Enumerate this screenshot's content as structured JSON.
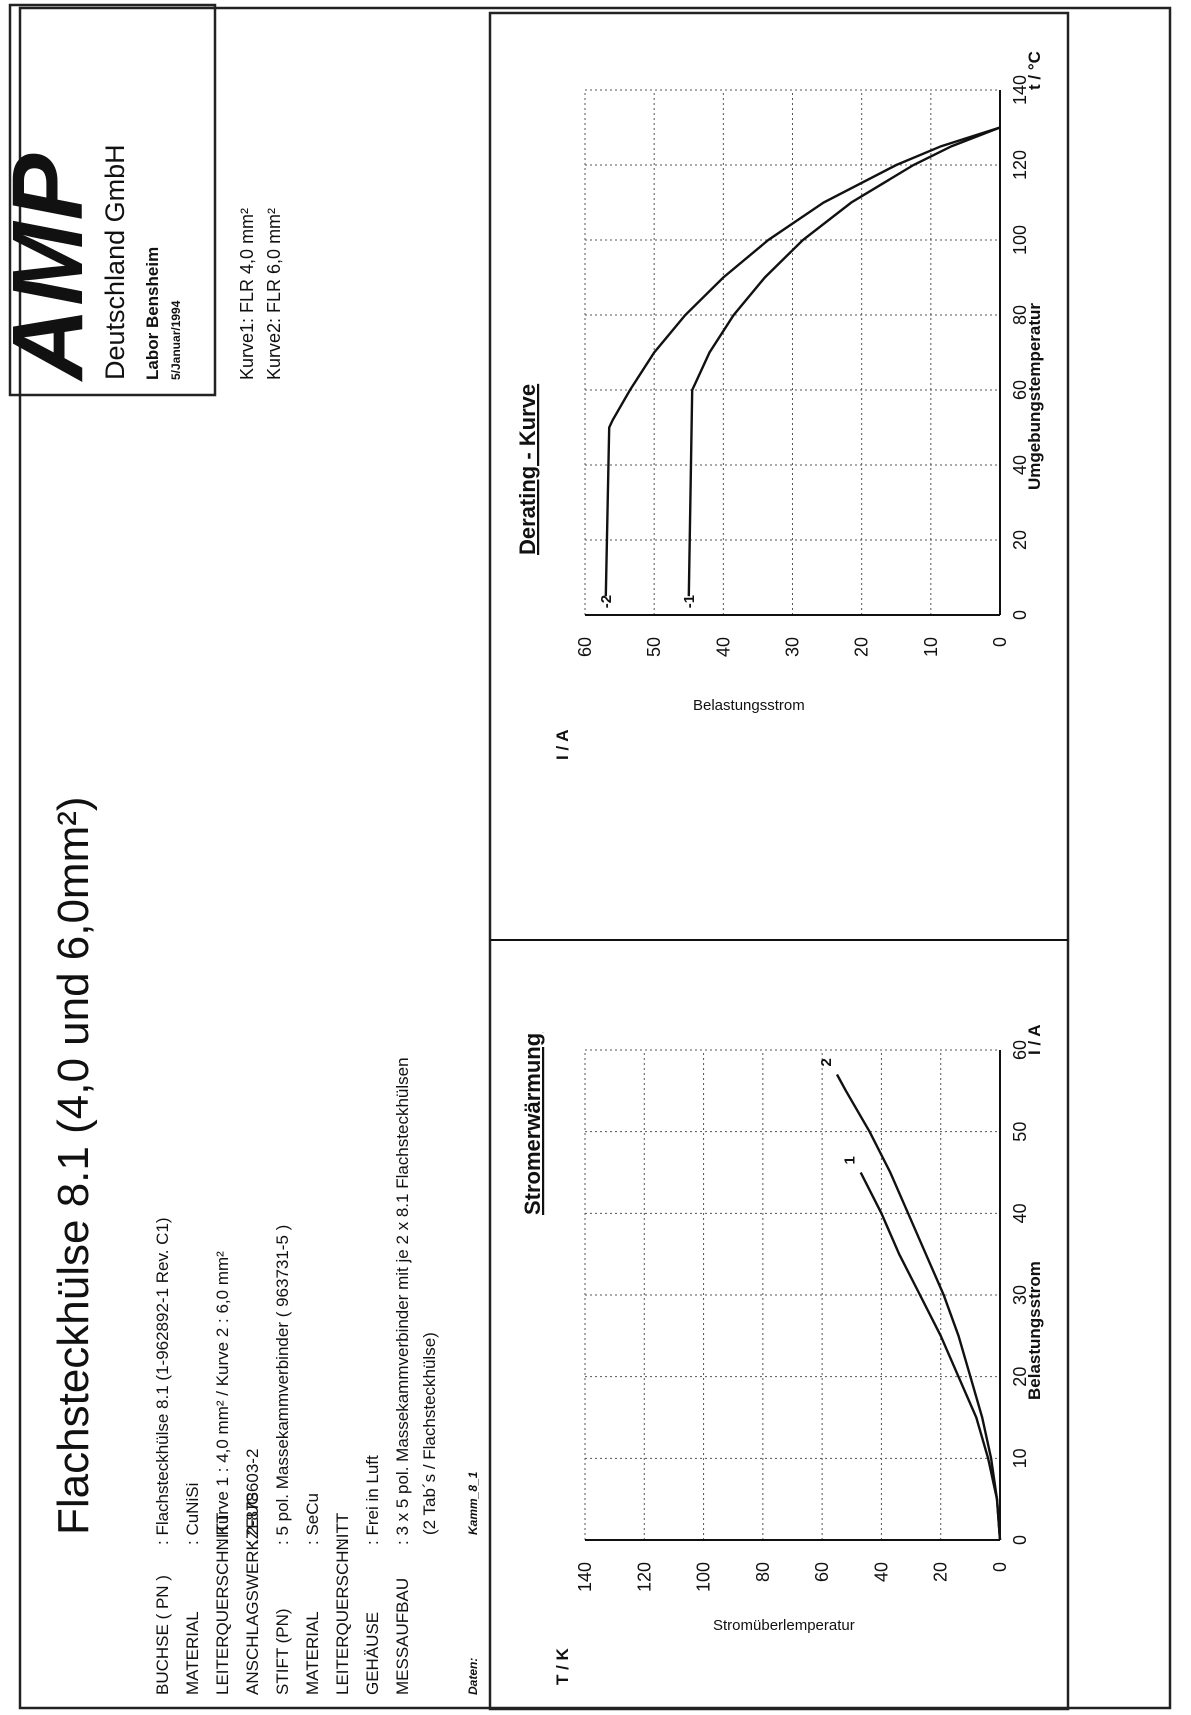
{
  "header": {
    "title": "Flachsteckhülse 8.1 (4,0 und 6,0mm²)",
    "logo_text": "AMP",
    "company": "Deutschland GmbH",
    "lab": "Labor Bensheim",
    "date": "5/Januar/1994",
    "curve_legend": [
      "Kurve1:  FLR  4,0 mm²",
      "Kurve2:  FLR  6,0 mm²"
    ]
  },
  "specs": {
    "labels": [
      "BUCHSE   ( PN )",
      "MATERIAL",
      "LEITERQUERSCHNITT",
      "ANSCHLAGSWERKZEUG",
      "STIFT  (PN)",
      "MATERIAL",
      "LEITERQUERSCHNITT",
      "GEHÄUSE",
      "MESSAUFBAU"
    ],
    "values": [
      ": Flachsteckhülse 8.1 (1-962892-1 Rev. C1)",
      ": CuNiSi",
      ": Kurve 1 : 4,0 mm²   /   Kurve 2 : 6,0 mm²",
      ": 2-878603-2",
      ": 5 pol. Massekammverbinder ( 963731-5 )",
      ": SeCu",
      ":",
      ": Frei in Luft",
      ": 3 x 5 pol. Massekammverbinder mit je 2 x 8.1 Flachsteckhülsen"
    ],
    "value_extra": "(2 Tab´s / Flachsteckhülse)",
    "data_label": "Daten:",
    "data_value": "Kamm_8_1"
  },
  "chart_data": [
    {
      "type": "line",
      "title": "Stromerwärmung",
      "xlabel": "Belastungsstrom",
      "ylabel": "Stromüberlemperatur",
      "x_unit": "I / A",
      "y_unit": "T / K",
      "xlim": [
        0,
        60
      ],
      "ylim": [
        0,
        140
      ],
      "xticks": [
        0,
        10,
        20,
        30,
        40,
        50,
        60
      ],
      "yticks": [
        0,
        20,
        40,
        60,
        80,
        100,
        120,
        140
      ],
      "grid": true,
      "series": [
        {
          "name": "1",
          "x": [
            0,
            5,
            10,
            15,
            20,
            25,
            30,
            35,
            40,
            45
          ],
          "y": [
            0,
            1,
            4,
            8,
            14,
            20,
            27,
            34,
            40,
            47
          ]
        },
        {
          "name": "2",
          "x": [
            0,
            5,
            10,
            15,
            20,
            25,
            30,
            35,
            40,
            45,
            50,
            55,
            57
          ],
          "y": [
            0,
            1,
            3,
            6,
            10,
            14,
            19,
            25,
            31,
            37,
            44,
            52,
            55
          ]
        }
      ]
    },
    {
      "type": "line",
      "title": "Derating - Kurve",
      "xlabel": "Umgebungstemperatur",
      "ylabel": "Belastungsstrom",
      "x_unit": "t / °C",
      "y_unit": "I / A",
      "xlim": [
        0,
        140
      ],
      "ylim": [
        0,
        60
      ],
      "xticks": [
        0,
        20,
        40,
        60,
        80,
        100,
        120,
        140
      ],
      "yticks": [
        0,
        10,
        20,
        30,
        40,
        50,
        60
      ],
      "grid": true,
      "series": [
        {
          "name": "1",
          "x": [
            5,
            60,
            62,
            70,
            80,
            90,
            100,
            110,
            120,
            125,
            130
          ],
          "y": [
            45,
            44.5,
            44,
            42,
            38.5,
            34,
            28.5,
            21.5,
            12.5,
            7,
            0
          ]
        },
        {
          "name": "2",
          "x": [
            5,
            50,
            52,
            60,
            70,
            80,
            90,
            100,
            110,
            120,
            125,
            130
          ],
          "y": [
            57,
            56.5,
            56,
            53.5,
            50,
            45.5,
            40,
            33.5,
            25.5,
            15,
            8.5,
            0
          ]
        }
      ]
    }
  ]
}
